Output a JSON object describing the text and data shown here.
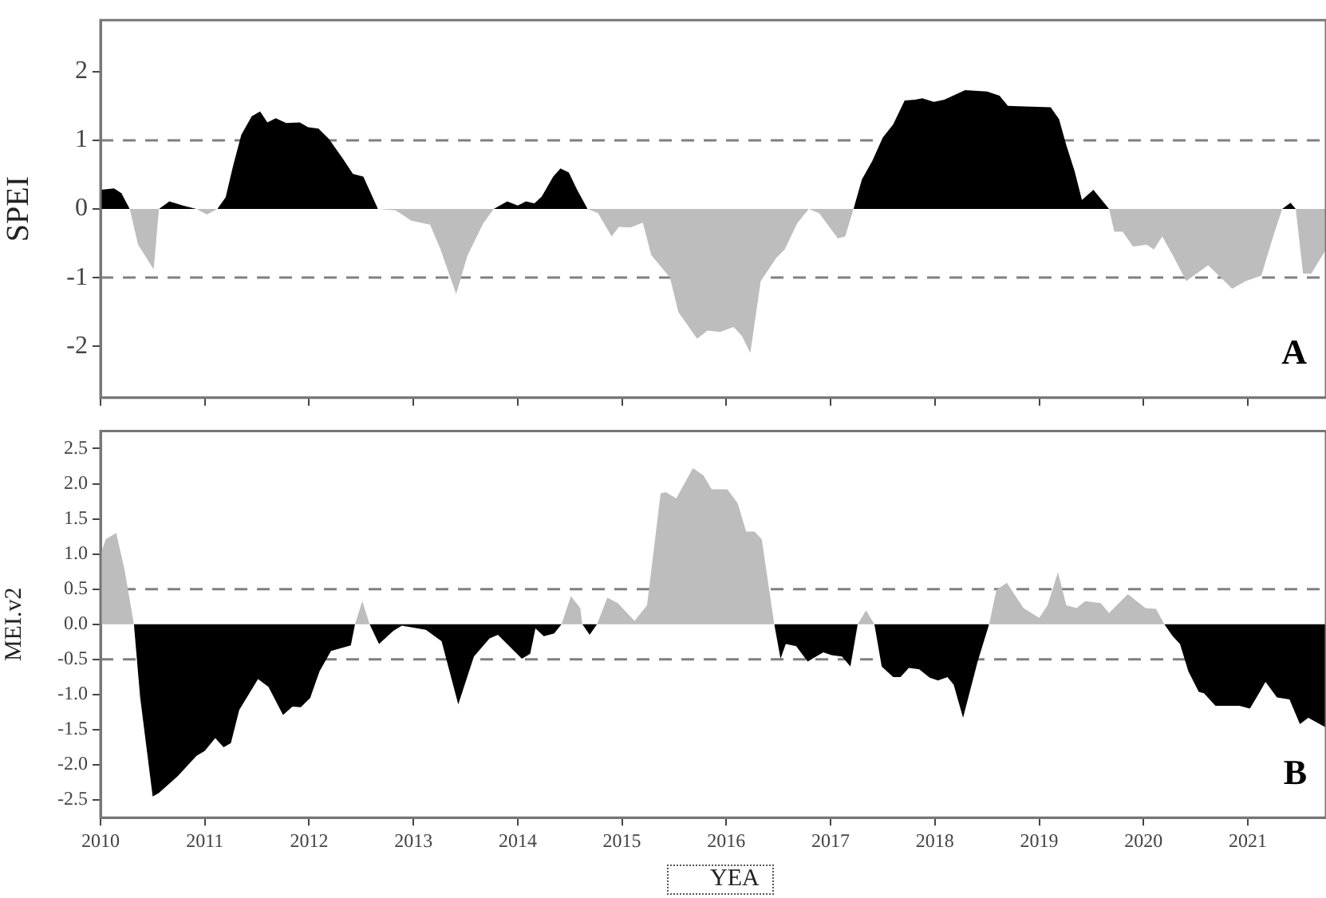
{
  "chart_data": [
    {
      "type": "area",
      "ylabel": "SPEI",
      "annotations": [
        "A"
      ],
      "tick_labels": "y",
      "legend": false,
      "grid": false,
      "x": [
        2010.0,
        2010.13,
        2010.2,
        2010.28,
        2010.36,
        2010.51,
        2010.56,
        2010.66,
        2010.79,
        2010.92,
        2011.02,
        2011.12,
        2011.2,
        2011.27,
        2011.35,
        2011.45,
        2011.53,
        2011.6,
        2011.68,
        2011.78,
        2011.91,
        2011.99,
        2012.09,
        2012.19,
        2012.32,
        2012.42,
        2012.52,
        2012.66,
        2012.83,
        2012.98,
        2013.16,
        2013.26,
        2013.41,
        2013.52,
        2013.67,
        2013.77,
        2013.9,
        2014.0,
        2014.08,
        2014.16,
        2014.23,
        2014.34,
        2014.41,
        2014.49,
        2014.57,
        2014.67,
        2014.77,
        2014.9,
        2014.97,
        2015.08,
        2015.2,
        2015.28,
        2015.46,
        2015.54,
        2015.72,
        2015.82,
        2015.94,
        2016.07,
        2016.15,
        2016.23,
        2016.33,
        2016.48,
        2016.56,
        2016.68,
        2016.79,
        2016.89,
        2017.07,
        2017.14,
        2017.22,
        2017.3,
        2017.4,
        2017.5,
        2017.6,
        2017.71,
        2017.81,
        2017.88,
        2017.99,
        2018.09,
        2018.29,
        2018.5,
        2018.62,
        2018.7,
        2019.11,
        2019.19,
        2019.26,
        2019.34,
        2019.41,
        2019.52,
        2019.67,
        2019.72,
        2019.8,
        2019.9,
        2020.03,
        2020.1,
        2020.18,
        2020.28,
        2020.41,
        2020.51,
        2020.62,
        2020.85,
        2020.98,
        2021.13,
        2021.25,
        2021.33,
        2021.41,
        2021.46,
        2021.53,
        2021.61,
        2021.75
      ],
      "series": [
        {
          "color": "#000000",
          "values": [
            0.28,
            0.3,
            0.23,
            0,
            null,
            null,
            0,
            0.11,
            0.05,
            0,
            null,
            0,
            0.17,
            0.62,
            1.08,
            1.35,
            1.42,
            1.26,
            1.32,
            1.25,
            1.26,
            1.19,
            1.17,
            1.02,
            0.74,
            0.51,
            0.47,
            0,
            null,
            null,
            null,
            null,
            null,
            null,
            null,
            0,
            0.11,
            0.05,
            0.11,
            0.08,
            0.18,
            0.47,
            0.59,
            0.53,
            0.28,
            0,
            null,
            null,
            null,
            null,
            null,
            null,
            null,
            null,
            null,
            null,
            null,
            null,
            null,
            null,
            null,
            null,
            null,
            null,
            null,
            null,
            null,
            null,
            0,
            0.43,
            0.7,
            1.04,
            1.23,
            1.58,
            1.59,
            1.61,
            1.56,
            1.59,
            1.73,
            1.71,
            1.65,
            1.5,
            1.48,
            1.31,
            0.93,
            0.55,
            0.13,
            0.28,
            0,
            null,
            null,
            null,
            null,
            null,
            null,
            null,
            null,
            null,
            null,
            null,
            null,
            null,
            null,
            0,
            0.09,
            0,
            null,
            null,
            null
          ]
        },
        {
          "color": "#bdbdbd",
          "values": [
            null,
            null,
            null,
            0,
            -0.52,
            -0.88,
            0,
            null,
            null,
            0,
            -0.08,
            0,
            null,
            null,
            null,
            null,
            null,
            null,
            null,
            null,
            null,
            null,
            null,
            null,
            null,
            null,
            null,
            0,
            -0.02,
            -0.17,
            -0.23,
            -0.59,
            -1.24,
            -0.67,
            -0.21,
            0,
            null,
            null,
            null,
            null,
            null,
            null,
            null,
            null,
            null,
            0,
            -0.06,
            -0.4,
            -0.26,
            -0.27,
            -0.2,
            -0.67,
            -1.0,
            -1.5,
            -1.89,
            -1.77,
            -1.79,
            -1.72,
            -1.85,
            -2.1,
            -1.05,
            -0.71,
            -0.59,
            -0.21,
            0,
            -0.06,
            -0.43,
            -0.4,
            0,
            null,
            null,
            null,
            null,
            null,
            null,
            null,
            null,
            null,
            null,
            null,
            null,
            null,
            null,
            null,
            null,
            null,
            null,
            null,
            0,
            -0.33,
            -0.33,
            -0.55,
            -0.52,
            -0.59,
            -0.4,
            -0.67,
            -1.05,
            -0.94,
            -0.82,
            -1.16,
            -1.05,
            -0.97,
            -0.37,
            0,
            null,
            0,
            -0.94,
            -0.94,
            -0.59
          ]
        }
      ],
      "xlim": [
        2010,
        2021.75
      ],
      "xticks": [
        2010,
        2011,
        2012,
        2013,
        2014,
        2015,
        2016,
        2017,
        2018,
        2019,
        2020,
        2021
      ],
      "ylim": [
        -2.75,
        2.75
      ],
      "yticks": [
        -2,
        -1,
        0,
        1,
        2
      ],
      "ref_lines": [
        {
          "axis": "y",
          "value": 1,
          "color": "#808080",
          "line_style": "dashed"
        },
        {
          "axis": "y",
          "value": -1,
          "color": "#808080",
          "line_style": "dashed"
        }
      ]
    },
    {
      "type": "area",
      "ylabel": "MEI.v2",
      "xlabel": "YEA",
      "annotations": [
        "B"
      ],
      "legend": false,
      "grid": false,
      "x": [
        2010.0,
        2010.05,
        2010.15,
        2010.23,
        2010.32,
        2010.38,
        2010.5,
        2010.56,
        2010.74,
        2010.92,
        2011.0,
        2011.1,
        2011.18,
        2011.25,
        2011.33,
        2011.51,
        2011.61,
        2011.75,
        2011.84,
        2011.92,
        2012.01,
        2012.1,
        2012.21,
        2012.4,
        2012.44,
        2012.51,
        2012.58,
        2012.67,
        2012.81,
        2012.89,
        2013.12,
        2013.27,
        2013.43,
        2013.58,
        2013.73,
        2013.81,
        2014.04,
        2014.12,
        2014.17,
        2014.25,
        2014.35,
        2014.42,
        2014.51,
        2014.6,
        2014.62,
        2014.69,
        2014.76,
        2014.86,
        2014.96,
        2015.12,
        2015.24,
        2015.37,
        2015.42,
        2015.52,
        2015.68,
        2015.78,
        2015.86,
        2016.01,
        2016.11,
        2016.19,
        2016.27,
        2016.34,
        2016.46,
        2016.52,
        2016.57,
        2016.67,
        2016.78,
        2016.93,
        2017.01,
        2017.11,
        2017.19,
        2017.26,
        2017.34,
        2017.42,
        2017.49,
        2017.6,
        2017.67,
        2017.75,
        2017.85,
        2017.95,
        2018.03,
        2018.12,
        2018.18,
        2018.27,
        2018.41,
        2018.52,
        2018.59,
        2018.69,
        2018.85,
        2019.0,
        2019.08,
        2019.18,
        2019.26,
        2019.36,
        2019.44,
        2019.59,
        2019.67,
        2019.85,
        2020.02,
        2020.12,
        2020.2,
        2020.28,
        2020.35,
        2020.43,
        2020.53,
        2020.58,
        2020.69,
        2020.92,
        2021.02,
        2021.1,
        2021.17,
        2021.28,
        2021.4,
        2021.5,
        2021.58,
        2021.75
      ],
      "series": [
        {
          "color": "#bdbdbd",
          "values": [
            0.99,
            1.21,
            1.3,
            0.78,
            0,
            null,
            null,
            null,
            null,
            null,
            null,
            null,
            null,
            null,
            null,
            null,
            null,
            null,
            null,
            null,
            null,
            null,
            null,
            null,
            0,
            0.33,
            0,
            null,
            null,
            null,
            null,
            null,
            null,
            null,
            null,
            null,
            null,
            null,
            null,
            null,
            null,
            0,
            0.4,
            0.23,
            0,
            null,
            0,
            0.38,
            0.3,
            0.05,
            0.27,
            1.86,
            1.88,
            1.79,
            2.22,
            2.12,
            1.92,
            1.92,
            1.72,
            1.32,
            1.32,
            1.21,
            0,
            null,
            null,
            null,
            null,
            null,
            null,
            null,
            null,
            0,
            0.2,
            0,
            null,
            null,
            null,
            null,
            null,
            null,
            null,
            null,
            null,
            null,
            null,
            0,
            0.49,
            0.59,
            0.23,
            0.09,
            0.27,
            0.74,
            0.27,
            0.23,
            0.33,
            0.3,
            0.16,
            0.43,
            0.23,
            0.22,
            0,
            null,
            null,
            null,
            null,
            null,
            null,
            null,
            null,
            null,
            null,
            null,
            null,
            null,
            null,
            null
          ]
        },
        {
          "color": "#000000",
          "values": [
            null,
            null,
            null,
            null,
            0,
            -1.04,
            -2.45,
            -2.4,
            -2.16,
            -1.87,
            -1.8,
            -1.62,
            -1.75,
            -1.69,
            -1.22,
            -0.78,
            -0.89,
            -1.29,
            -1.17,
            -1.18,
            -1.05,
            -0.67,
            -0.38,
            -0.3,
            0,
            null,
            0,
            -0.28,
            -0.09,
            -0.02,
            -0.08,
            -0.24,
            -1.14,
            -0.46,
            -0.2,
            -0.15,
            -0.49,
            -0.42,
            -0.06,
            -0.17,
            -0.13,
            0,
            null,
            null,
            0,
            -0.15,
            0,
            null,
            null,
            null,
            null,
            null,
            null,
            null,
            null,
            null,
            null,
            null,
            null,
            null,
            null,
            null,
            0,
            -0.49,
            -0.28,
            -0.31,
            -0.53,
            -0.4,
            -0.44,
            -0.46,
            -0.6,
            0,
            null,
            0,
            -0.6,
            -0.75,
            -0.75,
            -0.62,
            -0.64,
            -0.76,
            -0.8,
            -0.75,
            -0.86,
            -1.33,
            -0.53,
            0,
            null,
            null,
            null,
            null,
            null,
            null,
            null,
            null,
            null,
            null,
            null,
            null,
            null,
            null,
            0,
            -0.17,
            -0.28,
            -0.67,
            -0.96,
            -0.98,
            -1.16,
            -1.16,
            -1.2,
            -1.0,
            -0.82,
            -1.04,
            -1.07,
            -1.42,
            -1.33,
            -1.47
          ]
        }
      ],
      "xlim": [
        2010,
        2021.75
      ],
      "xticks": [
        2010,
        2011,
        2012,
        2013,
        2014,
        2015,
        2016,
        2017,
        2018,
        2019,
        2020,
        2021
      ],
      "ylim": [
        -2.75,
        2.75
      ],
      "yticks": [
        {
          "value": -2.5,
          "label": "-2.5"
        },
        {
          "value": -2,
          "label": "-2.0"
        },
        {
          "value": -1.5,
          "label": "-1.5"
        },
        {
          "value": -1,
          "label": "-1.0"
        },
        {
          "value": -0.5,
          "label": "-0.5"
        },
        {
          "value": 0,
          "label": "0.0"
        },
        {
          "value": 0.5,
          "label": "0.5"
        },
        {
          "value": 1,
          "label": "1.0"
        },
        {
          "value": 1.5,
          "label": "1.5"
        },
        {
          "value": 2,
          "label": "2.0"
        },
        {
          "value": 2.5,
          "label": "2.5"
        }
      ],
      "ref_lines": [
        {
          "axis": "y",
          "value": 0.5,
          "color": "#808080",
          "line_style": "dashed"
        },
        {
          "axis": "y",
          "value": -0.5,
          "color": "#808080",
          "line_style": "dashed"
        }
      ]
    }
  ]
}
